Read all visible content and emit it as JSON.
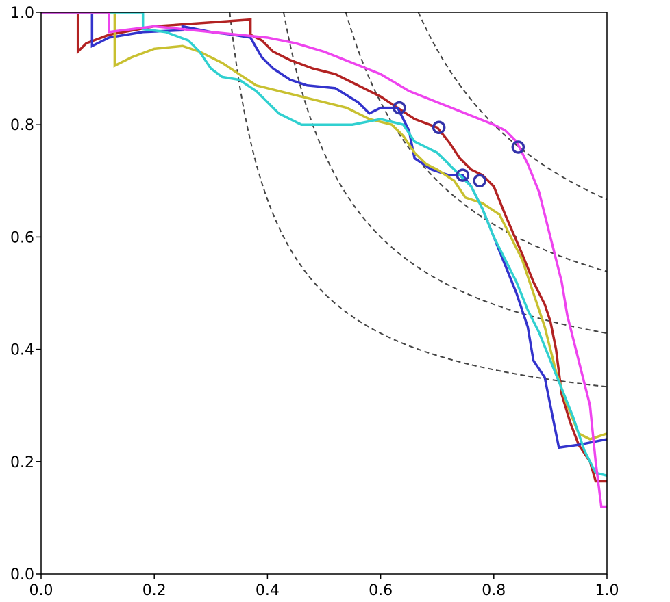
{
  "chart_data": {
    "type": "line",
    "title": "",
    "xlabel": "",
    "ylabel": "",
    "xlim": [
      0.0,
      1.0
    ],
    "ylim": [
      0.0,
      1.0
    ],
    "grid": false,
    "legend": "none",
    "x_ticks": [
      "0.0",
      "0.2",
      "0.4",
      "0.6",
      "0.8",
      "1.0"
    ],
    "y_ticks": [
      "0.0",
      "0.2",
      "0.4",
      "0.6",
      "0.8",
      "1.0"
    ],
    "iso_f1_curves": {
      "color": "#444444",
      "values": [
        0.5,
        0.6,
        0.7,
        0.8
      ]
    },
    "series": [
      {
        "color": "#b22222",
        "points": [
          [
            0.0,
            1.0
          ],
          [
            0.065,
            1.0
          ],
          [
            0.065,
            0.93
          ],
          [
            0.08,
            0.945
          ],
          [
            0.12,
            0.96
          ],
          [
            0.2,
            0.975
          ],
          [
            0.3,
            0.982
          ],
          [
            0.37,
            0.987
          ],
          [
            0.37,
            0.96
          ],
          [
            0.39,
            0.95
          ],
          [
            0.41,
            0.93
          ],
          [
            0.44,
            0.915
          ],
          [
            0.48,
            0.9
          ],
          [
            0.52,
            0.89
          ],
          [
            0.56,
            0.87
          ],
          [
            0.6,
            0.85
          ],
          [
            0.63,
            0.83
          ],
          [
            0.66,
            0.81
          ],
          [
            0.7,
            0.795
          ],
          [
            0.72,
            0.77
          ],
          [
            0.74,
            0.74
          ],
          [
            0.76,
            0.72
          ],
          [
            0.78,
            0.71
          ],
          [
            0.8,
            0.69
          ],
          [
            0.82,
            0.64
          ],
          [
            0.85,
            0.57
          ],
          [
            0.87,
            0.52
          ],
          [
            0.89,
            0.48
          ],
          [
            0.9,
            0.45
          ],
          [
            0.91,
            0.4
          ],
          [
            0.92,
            0.32
          ],
          [
            0.935,
            0.27
          ],
          [
            0.95,
            0.23
          ],
          [
            0.97,
            0.2
          ],
          [
            0.98,
            0.165
          ],
          [
            1.0,
            0.165
          ]
        ]
      },
      {
        "color": "#3333cc",
        "points": [
          [
            0.0,
            1.0
          ],
          [
            0.09,
            1.0
          ],
          [
            0.09,
            0.94
          ],
          [
            0.12,
            0.955
          ],
          [
            0.18,
            0.965
          ],
          [
            0.25,
            0.968
          ],
          [
            0.25,
            0.975
          ],
          [
            0.3,
            0.965
          ],
          [
            0.34,
            0.96
          ],
          [
            0.37,
            0.955
          ],
          [
            0.39,
            0.92
          ],
          [
            0.41,
            0.9
          ],
          [
            0.44,
            0.88
          ],
          [
            0.47,
            0.87
          ],
          [
            0.52,
            0.865
          ],
          [
            0.56,
            0.84
          ],
          [
            0.58,
            0.82
          ],
          [
            0.6,
            0.83
          ],
          [
            0.63,
            0.83
          ],
          [
            0.65,
            0.79
          ],
          [
            0.66,
            0.74
          ],
          [
            0.69,
            0.72
          ],
          [
            0.72,
            0.71
          ],
          [
            0.745,
            0.71
          ],
          [
            0.76,
            0.69
          ],
          [
            0.78,
            0.65
          ],
          [
            0.8,
            0.6
          ],
          [
            0.82,
            0.55
          ],
          [
            0.84,
            0.5
          ],
          [
            0.86,
            0.44
          ],
          [
            0.87,
            0.38
          ],
          [
            0.89,
            0.35
          ],
          [
            0.9,
            0.3
          ],
          [
            0.91,
            0.25
          ],
          [
            0.915,
            0.225
          ],
          [
            0.95,
            0.23
          ],
          [
            1.0,
            0.24
          ]
        ]
      },
      {
        "color": "#c8c030",
        "points": [
          [
            0.0,
            1.0
          ],
          [
            0.13,
            1.0
          ],
          [
            0.13,
            0.905
          ],
          [
            0.16,
            0.92
          ],
          [
            0.2,
            0.935
          ],
          [
            0.25,
            0.94
          ],
          [
            0.28,
            0.93
          ],
          [
            0.32,
            0.91
          ],
          [
            0.35,
            0.89
          ],
          [
            0.38,
            0.87
          ],
          [
            0.42,
            0.86
          ],
          [
            0.46,
            0.85
          ],
          [
            0.5,
            0.84
          ],
          [
            0.54,
            0.83
          ],
          [
            0.58,
            0.81
          ],
          [
            0.62,
            0.8
          ],
          [
            0.64,
            0.78
          ],
          [
            0.66,
            0.75
          ],
          [
            0.68,
            0.73
          ],
          [
            0.7,
            0.72
          ],
          [
            0.73,
            0.7
          ],
          [
            0.75,
            0.67
          ],
          [
            0.78,
            0.66
          ],
          [
            0.81,
            0.64
          ],
          [
            0.83,
            0.6
          ],
          [
            0.85,
            0.56
          ],
          [
            0.87,
            0.5
          ],
          [
            0.89,
            0.44
          ],
          [
            0.9,
            0.4
          ],
          [
            0.91,
            0.36
          ],
          [
            0.93,
            0.3
          ],
          [
            0.95,
            0.25
          ],
          [
            0.97,
            0.24
          ],
          [
            1.0,
            0.25
          ]
        ]
      },
      {
        "color": "#30d0d0",
        "points": [
          [
            0.0,
            1.0
          ],
          [
            0.18,
            1.0
          ],
          [
            0.18,
            0.97
          ],
          [
            0.22,
            0.965
          ],
          [
            0.26,
            0.95
          ],
          [
            0.28,
            0.93
          ],
          [
            0.3,
            0.9
          ],
          [
            0.32,
            0.885
          ],
          [
            0.35,
            0.88
          ],
          [
            0.38,
            0.86
          ],
          [
            0.42,
            0.82
          ],
          [
            0.46,
            0.8
          ],
          [
            0.5,
            0.8
          ],
          [
            0.55,
            0.8
          ],
          [
            0.6,
            0.81
          ],
          [
            0.64,
            0.8
          ],
          [
            0.66,
            0.77
          ],
          [
            0.7,
            0.75
          ],
          [
            0.72,
            0.73
          ],
          [
            0.74,
            0.71
          ],
          [
            0.76,
            0.69
          ],
          [
            0.78,
            0.65
          ],
          [
            0.8,
            0.6
          ],
          [
            0.82,
            0.56
          ],
          [
            0.84,
            0.52
          ],
          [
            0.86,
            0.47
          ],
          [
            0.88,
            0.43
          ],
          [
            0.9,
            0.38
          ],
          [
            0.92,
            0.33
          ],
          [
            0.94,
            0.28
          ],
          [
            0.96,
            0.22
          ],
          [
            0.98,
            0.18
          ],
          [
            1.0,
            0.175
          ]
        ]
      },
      {
        "color": "#ee44ee",
        "points": [
          [
            0.0,
            1.0
          ],
          [
            0.12,
            1.0
          ],
          [
            0.12,
            0.965
          ],
          [
            0.2,
            0.975
          ],
          [
            0.3,
            0.965
          ],
          [
            0.4,
            0.955
          ],
          [
            0.45,
            0.945
          ],
          [
            0.5,
            0.93
          ],
          [
            0.55,
            0.91
          ],
          [
            0.6,
            0.89
          ],
          [
            0.65,
            0.86
          ],
          [
            0.7,
            0.84
          ],
          [
            0.75,
            0.82
          ],
          [
            0.8,
            0.8
          ],
          [
            0.82,
            0.79
          ],
          [
            0.84,
            0.77
          ],
          [
            0.86,
            0.73
          ],
          [
            0.88,
            0.68
          ],
          [
            0.9,
            0.6
          ],
          [
            0.92,
            0.52
          ],
          [
            0.93,
            0.46
          ],
          [
            0.95,
            0.38
          ],
          [
            0.97,
            0.3
          ],
          [
            0.98,
            0.2
          ],
          [
            0.99,
            0.12
          ],
          [
            1.0,
            0.12
          ]
        ]
      }
    ],
    "markers": [
      {
        "x": 0.633,
        "y": 0.83,
        "color": "#3333aa"
      },
      {
        "x": 0.703,
        "y": 0.795,
        "color": "#3333aa"
      },
      {
        "x": 0.745,
        "y": 0.71,
        "color": "#3333aa"
      },
      {
        "x": 0.775,
        "y": 0.7,
        "color": "#3333aa"
      },
      {
        "x": 0.843,
        "y": 0.76,
        "color": "#3333aa"
      }
    ]
  }
}
